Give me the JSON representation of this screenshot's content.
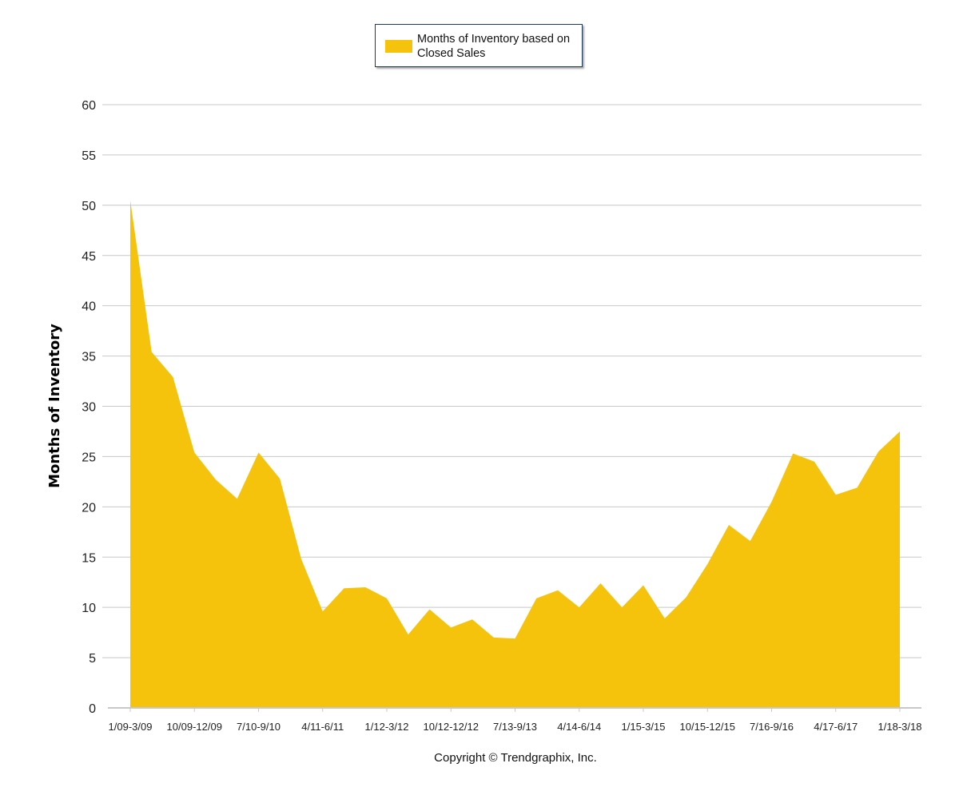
{
  "legend": {
    "label": "Months of Inventory based on Closed Sales"
  },
  "footer": {
    "copyright": "Copyright © Trendgraphix, Inc."
  },
  "colors": {
    "area_fill": "#F5C30C",
    "gridline": "#c8c8c8",
    "axis_line": "#c8c8c8",
    "legend_border": "#1f3a5a"
  },
  "chart_data": {
    "type": "area",
    "title": "",
    "xlabel": "",
    "ylabel": "Months of Inventory",
    "ylim": [
      0,
      60
    ],
    "yticks": [
      0,
      5,
      10,
      15,
      20,
      25,
      30,
      35,
      40,
      45,
      50,
      55,
      60
    ],
    "grid": true,
    "legend_position": "top-center",
    "x_tick_labels": [
      "1/09-3/09",
      "10/09-12/09",
      "7/10-9/10",
      "4/11-6/11",
      "1/12-3/12",
      "10/12-12/12",
      "7/13-9/13",
      "4/14-6/14",
      "1/15-3/15",
      "10/15-12/15",
      "7/16-9/16",
      "4/17-6/17",
      "1/18-3/18"
    ],
    "series": [
      {
        "name": "Months of Inventory based on Closed Sales",
        "values": [
          50.5,
          35.4,
          32.9,
          25.4,
          22.7,
          20.8,
          25.4,
          22.8,
          14.8,
          9.6,
          11.9,
          12.0,
          10.9,
          7.3,
          9.8,
          8.0,
          8.8,
          7.0,
          6.9,
          10.9,
          11.7,
          10.0,
          12.4,
          10.0,
          12.2,
          8.9,
          11.0,
          14.3,
          18.2,
          16.6,
          20.5,
          25.3,
          24.5,
          21.2,
          21.9,
          25.5,
          27.5
        ]
      }
    ]
  }
}
